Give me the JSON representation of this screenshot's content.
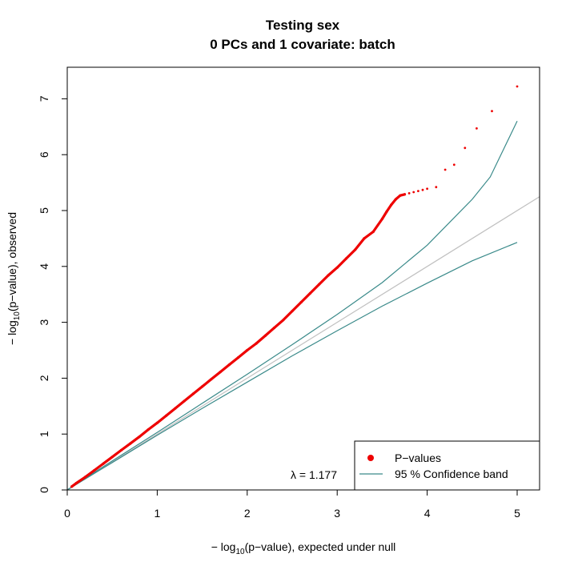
{
  "chart_data": {
    "type": "scatter",
    "title": "Testing sex",
    "subtitle": "0 PCs and 1 covariate: batch",
    "xlabel": {
      "prefix": "− log",
      "sub": "10",
      "suffix": "(p−value), expected under null"
    },
    "ylabel": {
      "prefix": "− log",
      "sub": "10",
      "suffix": "(p−value), observed"
    },
    "xlim": [
      0,
      5.25
    ],
    "ylim": [
      0,
      7.6
    ],
    "xticks": [
      "0",
      "1",
      "2",
      "3",
      "4",
      "5"
    ],
    "yticks": [
      "0",
      "1",
      "2",
      "3",
      "4",
      "5",
      "6",
      "7"
    ],
    "grid": false,
    "lambda_text": "λ = 1.177",
    "legend": {
      "position": "bottom-right",
      "items": [
        {
          "label": "P−values",
          "color": "#ee0000",
          "symbol": "point"
        },
        {
          "label": "95 % Confidence band",
          "color": "#3a8a8a",
          "symbol": "line"
        }
      ]
    },
    "colors": {
      "points": "#ee0000",
      "band": "#3a8a8a",
      "diagonal": "#c0c0c0"
    },
    "series": [
      {
        "kind": "points",
        "x": [
          0.05,
          0.1,
          0.2,
          0.3,
          0.4,
          0.5,
          0.6,
          0.7,
          0.8,
          0.9,
          1.0,
          1.1,
          1.2,
          1.3,
          1.4,
          1.5,
          1.6,
          1.7,
          1.8,
          1.9,
          2.0,
          2.1,
          2.2,
          2.3,
          2.4,
          2.5,
          2.6,
          2.7,
          2.8,
          2.9,
          3.0,
          3.1,
          3.2,
          3.3,
          3.4,
          3.5,
          3.55,
          3.6,
          3.65,
          3.7,
          3.75,
          3.8,
          3.85,
          3.9,
          3.95,
          4.0,
          4.1,
          4.2,
          4.3,
          4.42,
          4.55,
          4.72,
          5.0
        ],
        "y": [
          0.06,
          0.12,
          0.23,
          0.35,
          0.47,
          0.59,
          0.71,
          0.83,
          0.95,
          1.08,
          1.2,
          1.33,
          1.46,
          1.59,
          1.72,
          1.85,
          1.98,
          2.11,
          2.24,
          2.37,
          2.5,
          2.62,
          2.76,
          2.9,
          3.04,
          3.2,
          3.36,
          3.52,
          3.68,
          3.84,
          3.98,
          4.14,
          4.3,
          4.5,
          4.62,
          4.85,
          4.98,
          5.1,
          5.2,
          5.27,
          5.29,
          5.31,
          5.33,
          5.35,
          5.37,
          5.39,
          5.42,
          5.73,
          5.82,
          6.12,
          6.47,
          6.78,
          7.22
        ]
      },
      {
        "kind": "band_upper",
        "x": [
          0,
          0.5,
          1.0,
          1.5,
          2.0,
          2.5,
          3.0,
          3.5,
          4.0,
          4.5,
          4.7,
          5.0
        ],
        "y": [
          0,
          0.52,
          1.03,
          1.55,
          2.07,
          2.6,
          3.14,
          3.71,
          4.38,
          5.2,
          5.6,
          6.6
        ]
      },
      {
        "kind": "band_lower",
        "x": [
          0,
          0.5,
          1.0,
          1.5,
          2.0,
          2.5,
          3.0,
          3.5,
          4.0,
          4.5,
          5.0
        ],
        "y": [
          0,
          0.49,
          0.98,
          1.46,
          1.93,
          2.4,
          2.85,
          3.29,
          3.7,
          4.1,
          4.43
        ]
      },
      {
        "kind": "diagonal",
        "x": [
          0,
          5.25
        ],
        "y": [
          0,
          5.25
        ]
      }
    ]
  }
}
